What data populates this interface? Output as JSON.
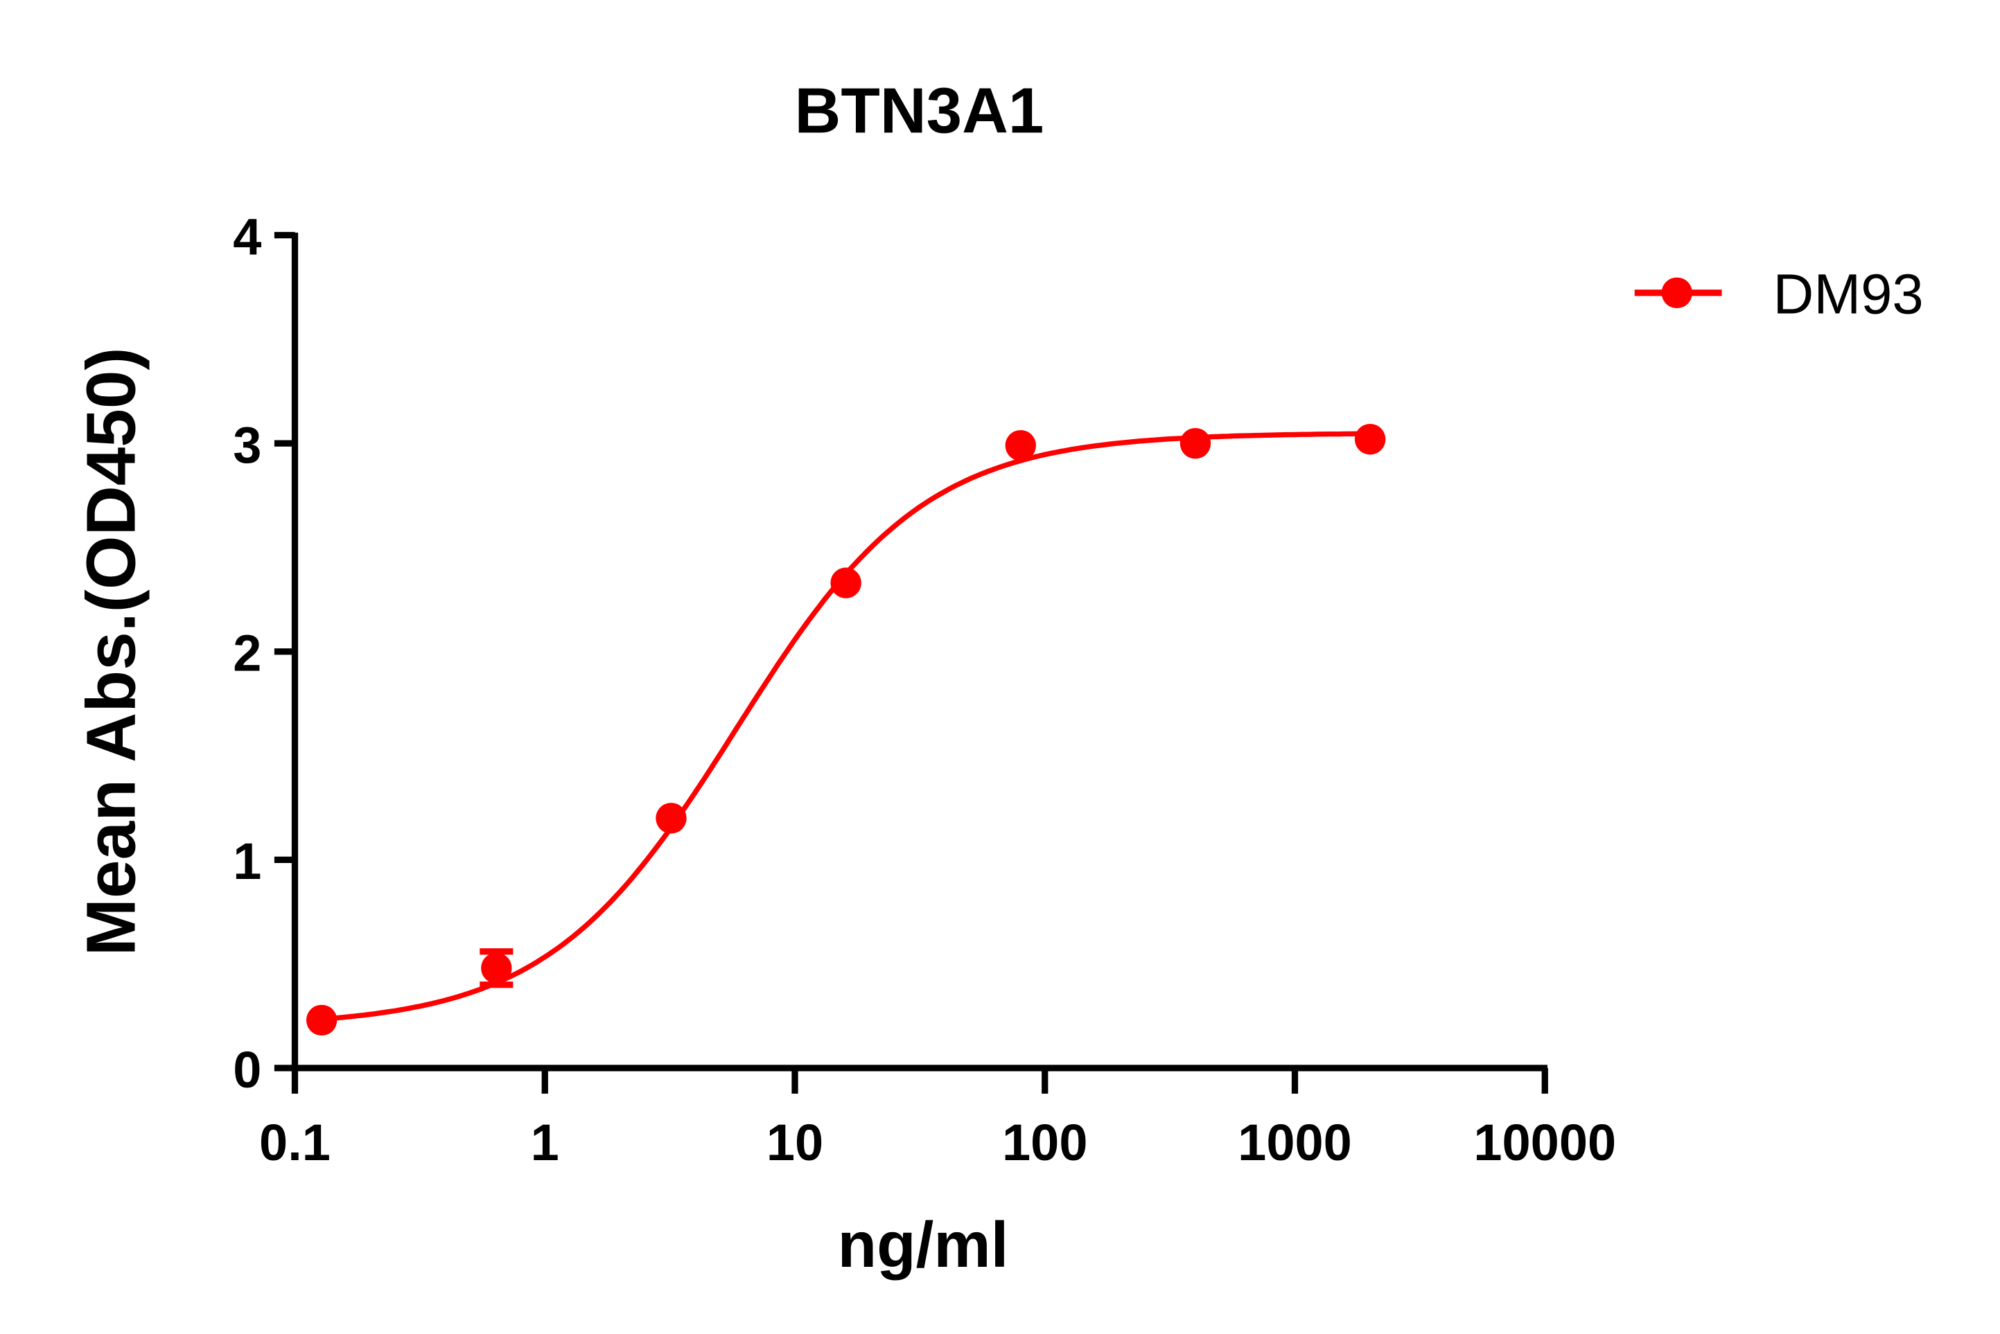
{
  "chart_data": {
    "type": "scatter",
    "title": "BTN3A1",
    "xlabel": "ng/ml",
    "ylabel": "Mean Abs.(OD450)",
    "x_scale": "log",
    "xlim": [
      0.1,
      10000
    ],
    "ylim": [
      0,
      4
    ],
    "x_ticks": [
      "0.1",
      "1",
      "10",
      "100",
      "1000",
      "10000"
    ],
    "y_ticks": [
      "0",
      "1",
      "2",
      "3",
      "4"
    ],
    "grid": false,
    "legend_position": "top-right",
    "series": [
      {
        "name": "DM93",
        "color": "#ff0000",
        "x": [
          0.128,
          0.64,
          3.2,
          16,
          80,
          400,
          2000
        ],
        "y": [
          0.23,
          0.48,
          1.2,
          2.33,
          2.99,
          3.0,
          3.02
        ],
        "error": [
          0,
          0.08,
          0,
          0,
          0,
          0,
          0
        ],
        "fit": "sigmoidal curve"
      }
    ]
  }
}
